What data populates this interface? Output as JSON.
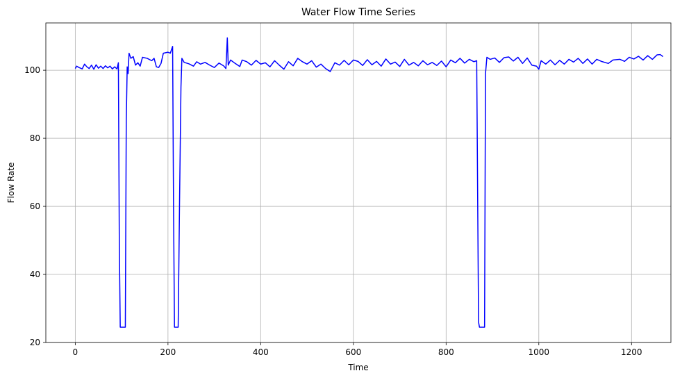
{
  "chart_data": {
    "type": "line",
    "title": "Water Flow Time Series",
    "x_label": "Time",
    "y_label": "Flow Rate",
    "color": "blue",
    "grid": true,
    "xlim": [
      -63.5,
      1285
    ],
    "ylim": [
      20,
      113.9
    ],
    "xticks": [
      0,
      200,
      400,
      600,
      800,
      1000,
      1200
    ],
    "yticks": [
      20,
      40,
      60,
      80,
      100
    ],
    "x": [
      0,
      3,
      8,
      15,
      20,
      25,
      30,
      35,
      40,
      45,
      50,
      55,
      60,
      65,
      70,
      75,
      80,
      85,
      90,
      93,
      95,
      97,
      108,
      110,
      112,
      114,
      116,
      120,
      125,
      130,
      135,
      140,
      145,
      155,
      165,
      170,
      175,
      180,
      185,
      190,
      200,
      205,
      210,
      212,
      214,
      222,
      225,
      228,
      230,
      235,
      245,
      255,
      262,
      270,
      280,
      290,
      300,
      310,
      320,
      325,
      328,
      330,
      335,
      345,
      355,
      360,
      370,
      380,
      390,
      400,
      410,
      420,
      430,
      440,
      450,
      460,
      470,
      480,
      490,
      500,
      510,
      520,
      530,
      540,
      550,
      560,
      570,
      580,
      590,
      600,
      610,
      620,
      630,
      640,
      650,
      660,
      670,
      680,
      690,
      700,
      710,
      720,
      730,
      740,
      750,
      760,
      770,
      780,
      790,
      800,
      810,
      820,
      830,
      840,
      850,
      860,
      866,
      870,
      872,
      883,
      885,
      888,
      895,
      905,
      915,
      925,
      935,
      945,
      955,
      965,
      975,
      985,
      995,
      1000,
      1005,
      1015,
      1025,
      1035,
      1045,
      1055,
      1065,
      1075,
      1085,
      1095,
      1105,
      1115,
      1125,
      1135,
      1150,
      1160,
      1175,
      1185,
      1195,
      1205,
      1215,
      1225,
      1235,
      1245,
      1255,
      1262,
      1268
    ],
    "values": [
      100.5,
      101.2,
      100.8,
      100.4,
      101.8,
      101.0,
      100.5,
      101.5,
      100.3,
      101.6,
      100.6,
      101.2,
      100.5,
      101.3,
      100.7,
      101.2,
      100.4,
      101.0,
      100.4,
      102.2,
      50,
      24.5,
      24.5,
      85,
      101,
      99,
      105,
      103.5,
      104,
      101.5,
      102.2,
      101.2,
      103.8,
      103.5,
      102.8,
      103.5,
      101,
      100.8,
      102,
      105,
      105.3,
      105,
      107,
      60,
      24.5,
      24.5,
      62,
      95,
      103.5,
      102.3,
      101.9,
      101.2,
      102.5,
      101.8,
      102.3,
      101.5,
      100.8,
      102.1,
      101.3,
      100.5,
      109.5,
      101.5,
      103,
      102,
      101.1,
      103,
      102.5,
      101.5,
      102.9,
      101.8,
      102.2,
      101.0,
      102.8,
      101.5,
      100.3,
      102.5,
      101.3,
      103.5,
      102.5,
      101.8,
      102.8,
      100.9,
      101.8,
      100.5,
      99.6,
      102.2,
      101.5,
      102.9,
      101.6,
      103.0,
      102.6,
      101.4,
      103.1,
      101.6,
      102.6,
      101.2,
      103.3,
      101.8,
      102.4,
      101.1,
      103.2,
      101.5,
      102.3,
      101.3,
      102.8,
      101.6,
      102.3,
      101.4,
      102.7,
      101.0,
      103.0,
      102.2,
      103.5,
      102.1,
      103.2,
      102.5,
      102.8,
      26,
      24.5,
      24.5,
      99,
      103.8,
      103.2,
      103.6,
      102.3,
      103.7,
      103.9,
      102.7,
      103.8,
      102.0,
      103.6,
      101.5,
      101.2,
      100.3,
      102.8,
      101.8,
      103.0,
      101.6,
      102.9,
      101.8,
      103.2,
      102.4,
      103.5,
      102.0,
      103.3,
      101.8,
      103.2,
      102.6,
      102.0,
      103.0,
      103.2,
      102.6,
      103.8,
      103.3,
      104.1,
      103.0,
      104.3,
      103.2,
      104.5,
      104.6,
      104
    ]
  }
}
